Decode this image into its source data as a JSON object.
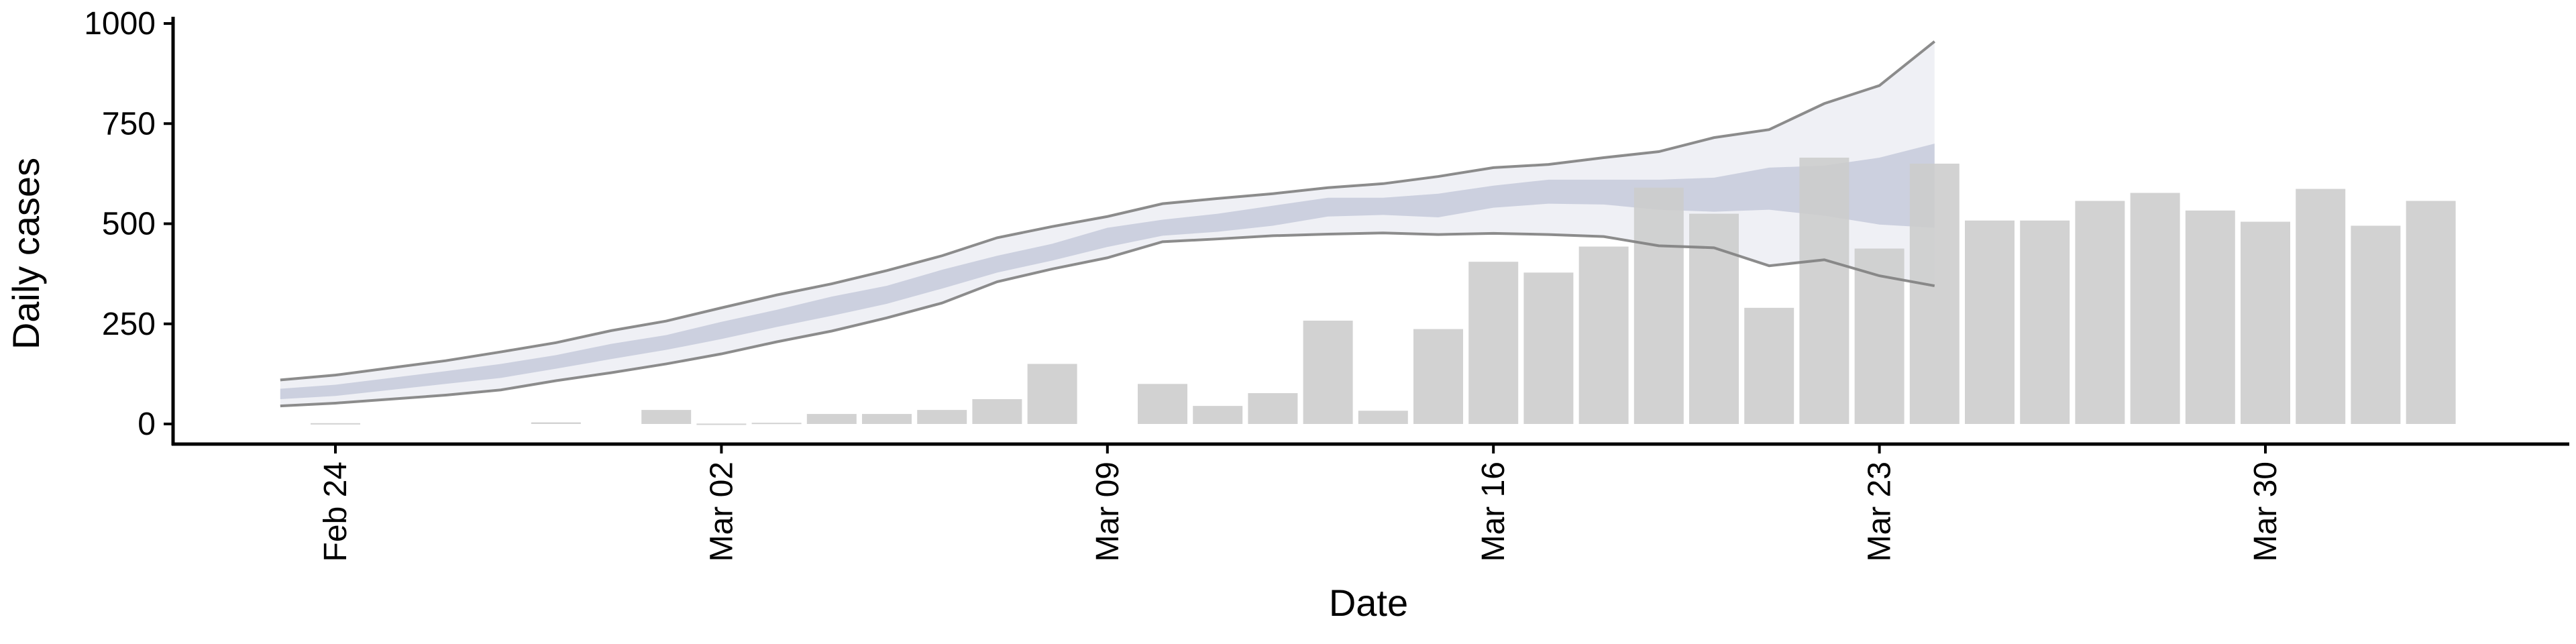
{
  "chart_data": {
    "type": "bar",
    "xlabel": "Date",
    "ylabel": "Daily cases",
    "ylim": [
      0,
      1000
    ],
    "y_ticks": [
      0,
      250,
      500,
      750,
      1000
    ],
    "y_tick_labels": [
      "0",
      "250",
      "500",
      "750",
      "1000"
    ],
    "x_ticks": [
      "2020-02-24",
      "2020-03-02",
      "2020-03-09",
      "2020-03-16",
      "2020-03-23",
      "2020-03-30"
    ],
    "x_tick_labels": [
      "Feb 24",
      "Mar 02",
      "Mar 09",
      "Mar 16",
      "Mar 23",
      "Mar 30"
    ],
    "x_range": [
      "2020-02-21",
      "2020-04-04"
    ],
    "grid": false,
    "colors": {
      "bars": "#cccccc",
      "band_outer": "#ecedf3",
      "band_inner": "#c3c8da",
      "line_bound": "#7f7f7f"
    },
    "bars": [
      {
        "date": "2020-02-24",
        "value": 2
      },
      {
        "date": "2020-02-28",
        "value": 4
      },
      {
        "date": "2020-03-01",
        "value": 35
      },
      {
        "date": "2020-03-02",
        "value": 1
      },
      {
        "date": "2020-03-03",
        "value": 3
      },
      {
        "date": "2020-03-04",
        "value": 25
      },
      {
        "date": "2020-03-05",
        "value": 25
      },
      {
        "date": "2020-03-06",
        "value": 35
      },
      {
        "date": "2020-03-07",
        "value": 62
      },
      {
        "date": "2020-03-08",
        "value": 150
      },
      {
        "date": "2020-03-10",
        "value": 100
      },
      {
        "date": "2020-03-11",
        "value": 45
      },
      {
        "date": "2020-03-12",
        "value": 77
      },
      {
        "date": "2020-03-13",
        "value": 258
      },
      {
        "date": "2020-03-14",
        "value": 33
      },
      {
        "date": "2020-03-15",
        "value": 237
      },
      {
        "date": "2020-03-16",
        "value": 405
      },
      {
        "date": "2020-03-17",
        "value": 378
      },
      {
        "date": "2020-03-18",
        "value": 443
      },
      {
        "date": "2020-03-19",
        "value": 590
      },
      {
        "date": "2020-03-20",
        "value": 525
      },
      {
        "date": "2020-03-21",
        "value": 290
      },
      {
        "date": "2020-03-22",
        "value": 665
      },
      {
        "date": "2020-03-23",
        "value": 438
      },
      {
        "date": "2020-03-24",
        "value": 650
      },
      {
        "date": "2020-03-25",
        "value": 508
      },
      {
        "date": "2020-03-26",
        "value": 508
      },
      {
        "date": "2020-03-27",
        "value": 557
      },
      {
        "date": "2020-03-28",
        "value": 577
      },
      {
        "date": "2020-03-29",
        "value": 533
      },
      {
        "date": "2020-03-30",
        "value": 505
      },
      {
        "date": "2020-03-31",
        "value": 587
      },
      {
        "date": "2020-04-01",
        "value": 495
      },
      {
        "date": "2020-04-02",
        "value": 557
      }
    ],
    "estimate": {
      "dates": [
        "2020-02-23",
        "2020-02-24",
        "2020-02-25",
        "2020-02-26",
        "2020-02-27",
        "2020-02-28",
        "2020-02-29",
        "2020-03-01",
        "2020-03-02",
        "2020-03-03",
        "2020-03-04",
        "2020-03-05",
        "2020-03-06",
        "2020-03-07",
        "2020-03-08",
        "2020-03-09",
        "2020-03-10",
        "2020-03-11",
        "2020-03-12",
        "2020-03-13",
        "2020-03-14",
        "2020-03-15",
        "2020-03-16",
        "2020-03-17",
        "2020-03-18",
        "2020-03-19",
        "2020-03-20",
        "2020-03-21",
        "2020-03-22",
        "2020-03-23",
        "2020-03-24"
      ],
      "outer_upper": [
        110,
        122,
        140,
        158,
        180,
        203,
        233,
        257,
        290,
        322,
        350,
        383,
        420,
        465,
        493,
        518,
        550,
        563,
        575,
        590,
        600,
        618,
        640,
        648,
        665,
        680,
        715,
        735,
        800,
        845,
        955
      ],
      "outer_lower": [
        45,
        52,
        62,
        72,
        85,
        108,
        128,
        150,
        175,
        205,
        232,
        265,
        302,
        355,
        387,
        415,
        455,
        462,
        470,
        474,
        477,
        473,
        476,
        473,
        468,
        445,
        440,
        395,
        410,
        370,
        345
      ],
      "inner_upper": [
        88,
        98,
        115,
        132,
        150,
        172,
        200,
        222,
        255,
        285,
        318,
        345,
        385,
        420,
        450,
        490,
        510,
        525,
        545,
        565,
        565,
        575,
        595,
        610,
        610,
        610,
        615,
        640,
        645,
        665,
        700
      ],
      "inner_lower": [
        62,
        70,
        85,
        100,
        115,
        138,
        162,
        185,
        212,
        242,
        270,
        300,
        338,
        378,
        408,
        442,
        470,
        480,
        495,
        518,
        522,
        516,
        540,
        550,
        548,
        535,
        530,
        535,
        520,
        498,
        490
      ]
    }
  }
}
